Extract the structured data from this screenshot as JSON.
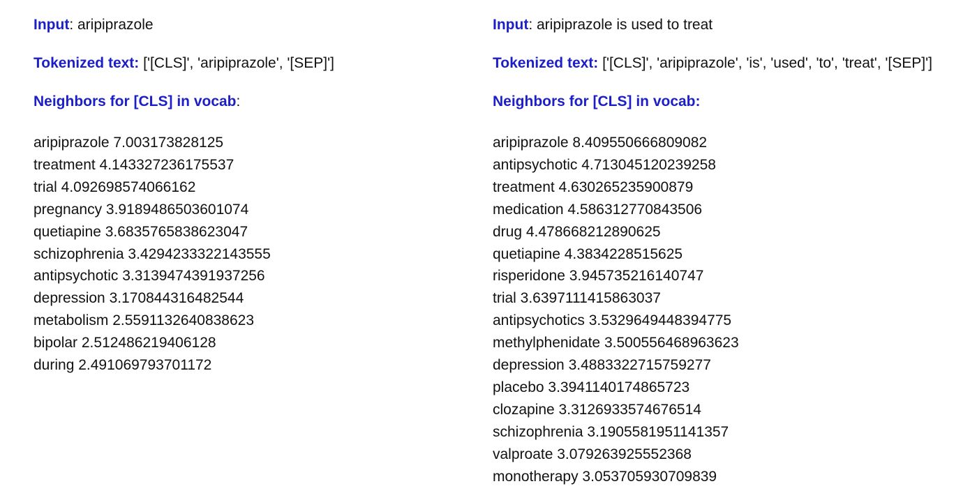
{
  "label_colors": {
    "label": "#1c1fc7",
    "text": "#111111"
  },
  "left": {
    "input_label": "Input",
    "input_colon": ":",
    "input_value": " aripiprazole",
    "tokenized_label": "Tokenized text:",
    "tokenized_value": " ['[CLS]', 'aripiprazole', '[SEP]']",
    "neighbors_label": "Neighbors for [CLS] in vocab",
    "neighbors_colon": ":",
    "neighbors": [
      "aripiprazole 7.003173828125",
      "treatment 4.143327236175537",
      "trial 4.092698574066162",
      "pregnancy 3.9189486503601074",
      "quetiapine 3.6835765838623047",
      "schizophrenia 3.4294233322143555",
      "antipsychotic 3.3139474391937256",
      "depression 3.170844316482544",
      "metabolism 2.5591132640838623",
      "bipolar 2.512486219406128",
      "during 2.491069793701172"
    ]
  },
  "right": {
    "input_label": "Input",
    "input_colon": ":",
    "input_value": " aripiprazole is used to treat",
    "tokenized_label": "Tokenized text:",
    "tokenized_value": " ['[CLS]', 'aripiprazole', 'is', 'used', 'to', 'treat', '[SEP]']",
    "neighbors_label": "Neighbors for [CLS] in vocab:",
    "neighbors": [
      "aripiprazole 8.409550666809082",
      "antipsychotic 4.713045120239258",
      "treatment 4.630265235900879",
      "medication 4.586312770843506",
      "drug 4.478668212890625",
      "quetiapine 4.3834228515625",
      "risperidone 3.945735216140747",
      "trial 3.6397111415863037",
      "antipsychotics 3.5329649448394775",
      "methylphenidate 3.500556468963623",
      "depression 3.4883322715759277",
      "placebo 3.3941140174865723",
      "clozapine 3.3126933574676514",
      "schizophrenia 3.1905581951141357",
      "valproate 3.079263925552368",
      "monotherapy 3.053705930709839"
    ]
  }
}
